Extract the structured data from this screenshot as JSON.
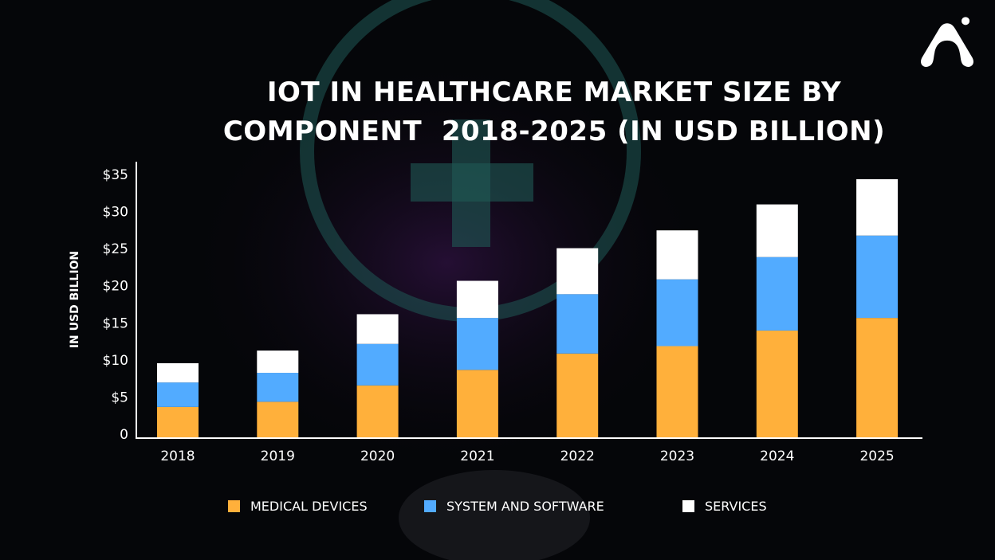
{
  "chart_data": {
    "type": "bar",
    "stacked": true,
    "title_lines": [
      "IOT IN HEALTHCARE MARKET SIZE BY",
      "COMPONENT  2018-2025 (IN USD BILLION)"
    ],
    "xlabel": "",
    "ylabel": "IN USD BILLION",
    "ylim": [
      0,
      35
    ],
    "yticks": [
      "0",
      "$5",
      "$10",
      "$15",
      "$20",
      "$25",
      "$30",
      "$35"
    ],
    "grid": false,
    "legend_position": "bottom",
    "categories": [
      "2018",
      "2019",
      "2020",
      "2021",
      "2022",
      "2023",
      "2024",
      "2025"
    ],
    "series": [
      {
        "name": "MEDICAL DEVICES",
        "color": "#FFB03B",
        "values": [
          4.2,
          4.9,
          7.1,
          9.2,
          11.4,
          12.4,
          14.5,
          16.2
        ]
      },
      {
        "name": "SYSTEM AND SOFTWARE",
        "color": "#52ABFF",
        "values": [
          3.3,
          3.9,
          5.6,
          7.0,
          8.0,
          9.0,
          9.9,
          11.1
        ]
      },
      {
        "name": "SERVICES",
        "color": "#FFFFFF",
        "values": [
          2.6,
          3.0,
          4.0,
          5.0,
          6.2,
          6.6,
          7.1,
          7.6
        ]
      }
    ]
  },
  "colors": {
    "background": "#050609",
    "axis": "#FFFFFF"
  },
  "logo": {
    "icon": "brand-a-logo-icon"
  }
}
